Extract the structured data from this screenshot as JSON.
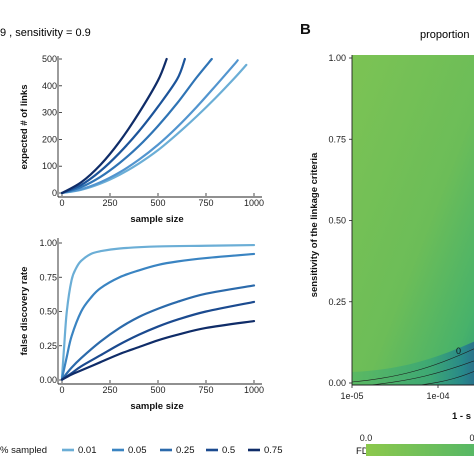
{
  "panel_a": {
    "title": "9 , sensitivity = 0.9"
  },
  "panel_b": {
    "letter": "B",
    "title": "proportion"
  },
  "chart_data": [
    {
      "type": "line",
      "xlabel": "sample size",
      "ylabel": "expected # of links",
      "xlim": [
        0,
        1000
      ],
      "ylim": [
        0,
        500
      ],
      "x_ticks": [
        "0",
        "250",
        "500",
        "750",
        "1000"
      ],
      "y_ticks": [
        "0",
        "100",
        "200",
        "300",
        "400",
        "500"
      ],
      "grid": false,
      "series": [
        {
          "color": "#6baed6",
          "points": [
            [
              0,
              0
            ],
            [
              100,
              12
            ],
            [
              200,
              35
            ],
            [
              300,
              68
            ],
            [
              400,
              110
            ],
            [
              500,
              160
            ],
            [
              600,
              220
            ],
            [
              700,
              285
            ],
            [
              800,
              355
            ],
            [
              900,
              430
            ],
            [
              960,
              478
            ]
          ]
        },
        {
          "color": "#5295cf",
          "points": [
            [
              0,
              0
            ],
            [
              100,
              14
            ],
            [
              200,
              40
            ],
            [
              300,
              77
            ],
            [
              400,
              124
            ],
            [
              500,
              180
            ],
            [
              600,
              246
            ],
            [
              700,
              320
            ],
            [
              800,
              400
            ],
            [
              900,
              482
            ],
            [
              915,
              495
            ]
          ]
        },
        {
          "color": "#2f74b5",
          "points": [
            [
              0,
              0
            ],
            [
              100,
              22
            ],
            [
              200,
              60
            ],
            [
              300,
              112
            ],
            [
              400,
              175
            ],
            [
              500,
              250
            ],
            [
              600,
              335
            ],
            [
              700,
              430
            ],
            [
              780,
              500
            ]
          ]
        },
        {
          "color": "#1c549a",
          "points": [
            [
              0,
              0
            ],
            [
              100,
              30
            ],
            [
              200,
              82
            ],
            [
              300,
              150
            ],
            [
              400,
              230
            ],
            [
              500,
              322
            ],
            [
              600,
              425
            ],
            [
              640,
              500
            ]
          ]
        },
        {
          "color": "#0f2c68",
          "points": [
            [
              0,
              0
            ],
            [
              100,
              40
            ],
            [
              200,
              105
            ],
            [
              300,
              192
            ],
            [
              400,
              298
            ],
            [
              500,
              420
            ],
            [
              545,
              500
            ]
          ]
        }
      ]
    },
    {
      "type": "line",
      "xlabel": "sample size",
      "ylabel": "false discovery rate",
      "xlim": [
        0,
        1000
      ],
      "ylim": [
        0,
        1
      ],
      "x_ticks": [
        "0",
        "250",
        "500",
        "750",
        "1000"
      ],
      "y_ticks": [
        "0.00",
        "0.25",
        "0.50",
        "0.75",
        "1.00"
      ],
      "grid": false,
      "legend_title": "% sampled",
      "legend_position": "bottom",
      "series": [
        {
          "name": "0.01",
          "color": "#6baed6",
          "points": [
            [
              0,
              0.02
            ],
            [
              10,
              0.22
            ],
            [
              25,
              0.5
            ],
            [
              50,
              0.73
            ],
            [
              75,
              0.82
            ],
            [
              100,
              0.87
            ],
            [
              150,
              0.92
            ],
            [
              200,
              0.94
            ],
            [
              300,
              0.96
            ],
            [
              500,
              0.975
            ],
            [
              750,
              0.98
            ],
            [
              1000,
              0.985
            ]
          ]
        },
        {
          "name": "0.05",
          "color": "#3a84c2",
          "points": [
            [
              0,
              0.01
            ],
            [
              25,
              0.17
            ],
            [
              50,
              0.32
            ],
            [
              100,
              0.5
            ],
            [
              150,
              0.6
            ],
            [
              200,
              0.67
            ],
            [
              300,
              0.75
            ],
            [
              400,
              0.8
            ],
            [
              500,
              0.84
            ],
            [
              600,
              0.865
            ],
            [
              750,
              0.89
            ],
            [
              1000,
              0.92
            ]
          ]
        },
        {
          "name": "0.25",
          "color": "#2b6aab",
          "points": [
            [
              0,
              0.005
            ],
            [
              50,
              0.09
            ],
            [
              100,
              0.16
            ],
            [
              200,
              0.28
            ],
            [
              300,
              0.38
            ],
            [
              400,
              0.46
            ],
            [
              500,
              0.52
            ],
            [
              600,
              0.57
            ],
            [
              750,
              0.63
            ],
            [
              1000,
              0.69
            ]
          ]
        },
        {
          "name": "0.5",
          "color": "#1b4a8f",
          "points": [
            [
              0,
              0.003
            ],
            [
              50,
              0.05
            ],
            [
              100,
              0.1
            ],
            [
              200,
              0.18
            ],
            [
              300,
              0.26
            ],
            [
              400,
              0.33
            ],
            [
              500,
              0.39
            ],
            [
              600,
              0.44
            ],
            [
              750,
              0.5
            ],
            [
              1000,
              0.57
            ]
          ]
        },
        {
          "name": "0.75",
          "color": "#0f2c68",
          "points": [
            [
              0,
              0.002
            ],
            [
              50,
              0.04
            ],
            [
              100,
              0.07
            ],
            [
              200,
              0.13
            ],
            [
              300,
              0.19
            ],
            [
              400,
              0.24
            ],
            [
              500,
              0.29
            ],
            [
              600,
              0.33
            ],
            [
              750,
              0.38
            ],
            [
              1000,
              0.43
            ]
          ]
        }
      ]
    },
    {
      "type": "heatmap",
      "xlabel": "1 - s",
      "ylabel": "sensitivity of the linkage criteria",
      "x_scale": "log",
      "x_ticks": [
        "1e-05",
        "1e-04"
      ],
      "y_ticks": [
        "0.00",
        "0.25",
        "0.50",
        "0.75",
        "1.00"
      ],
      "ylim": [
        0,
        1
      ],
      "legend_title": "FDR",
      "legend_ticks": [
        "0.0",
        "0"
      ],
      "fill_colors": [
        "#7ac355",
        "#4db86a",
        "#2e9e7e",
        "#24838e",
        "#28588f"
      ],
      "contour_label": "0"
    }
  ]
}
